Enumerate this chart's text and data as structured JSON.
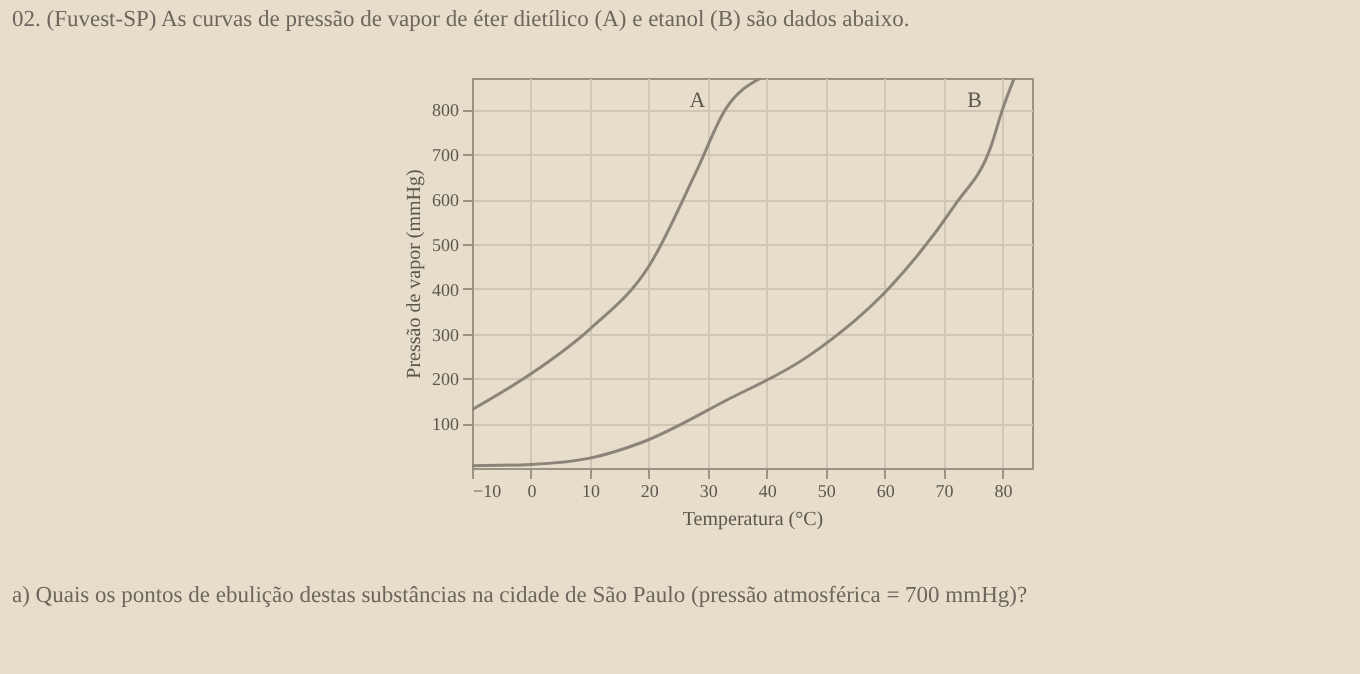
{
  "chart_data": {
    "type": "line",
    "title": "02. (Fuvest-SP) As curvas de pressão de vapor de éter dietílico (A) e etanol (B) são dados abaixo.",
    "xlabel": "Temperatura (°C)",
    "ylabel": "Pressão de vapor (mmHg)",
    "series": [
      {
        "name": "A",
        "color": "#8c8478",
        "x": [
          -10,
          0,
          10,
          20,
          28,
          33,
          39
        ],
        "values": [
          130,
          210,
          310,
          450,
          660,
          800,
          870
        ]
      },
      {
        "name": "B",
        "color": "#8c8478",
        "x": [
          -10,
          0,
          10,
          19,
          33,
          47,
          61,
          72,
          78,
          80,
          82
        ],
        "values": [
          5,
          8,
          22,
          58,
          150,
          249,
          405,
          588,
          716,
          800,
          870
        ]
      }
    ],
    "annotations": [
      "a) Quais os pontos de ebulição destas substâncias na cidade de São Paulo (pressão atmosférica = 700 mmHg)?"
    ],
    "xlim": [
      -10,
      85
    ],
    "ylim": [
      0,
      870
    ],
    "xticks": [
      -10,
      0,
      10,
      20,
      30,
      40,
      50,
      60,
      70,
      80
    ],
    "yticks": [
      100,
      200,
      300,
      400,
      500,
      600,
      700,
      800
    ],
    "grid": true,
    "marker": "none",
    "line_style": "solid"
  }
}
